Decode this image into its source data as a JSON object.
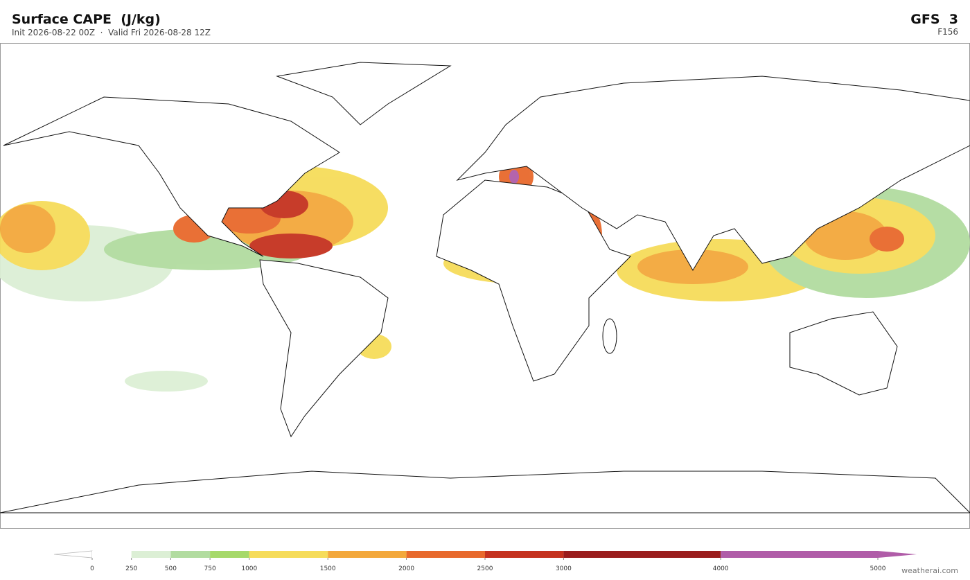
{
  "header": {
    "title": "Surface CAPE  (J/kg)",
    "subtitle": "Init 2026-08-22 00Z  ·  Valid Fri 2026-08-28 12Z",
    "model": "GFS  3",
    "forecast_hour": "F156"
  },
  "colorbar": {
    "levels": [
      0,
      250,
      500,
      750,
      1000,
      1500,
      2000,
      2500,
      3000,
      4000,
      5000
    ],
    "colors": [
      "#ffffff",
      "#dcefd5",
      "#b2dca0",
      "#a6d96a",
      "#f6dc5a",
      "#f3a83c",
      "#e8692c",
      "#c5321f",
      "#9a1d1d",
      "#b05ca8"
    ],
    "under_color": "#ffffff",
    "over_color": "#b05ca8"
  },
  "watermark": "weatherai.com"
}
